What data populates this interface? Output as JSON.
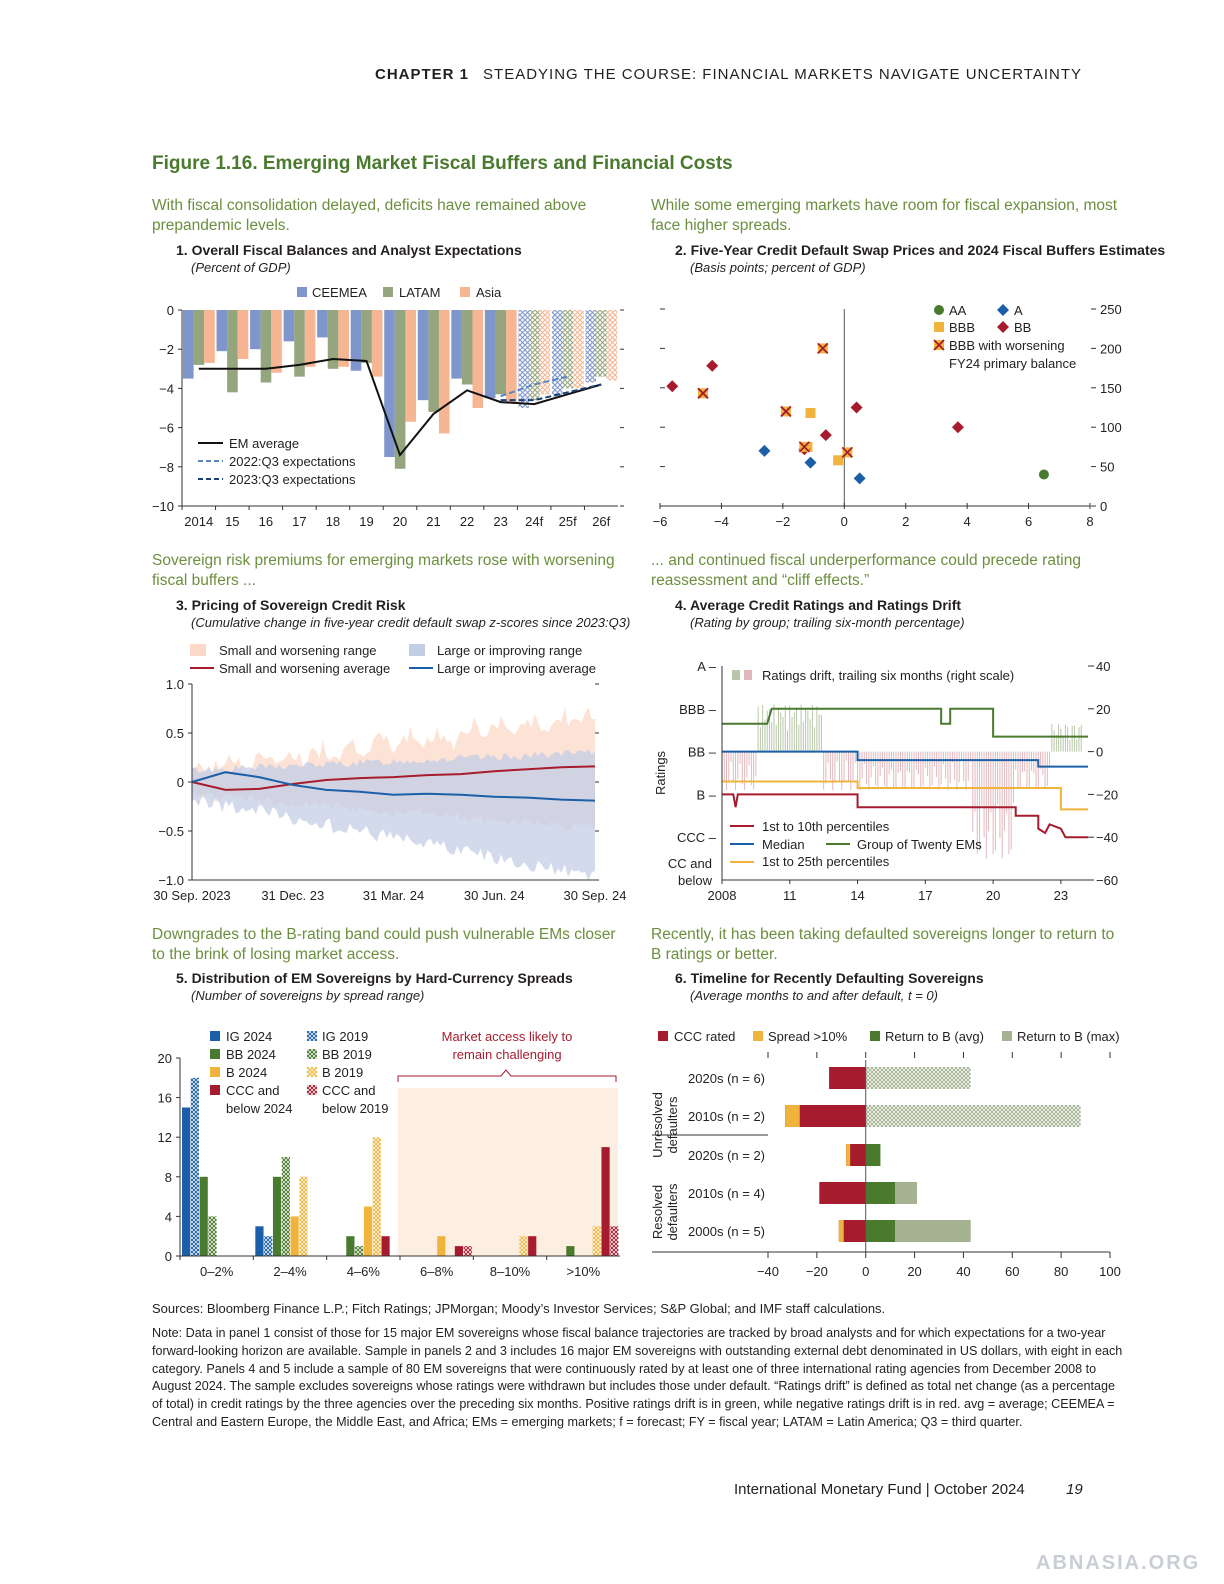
{
  "header": {
    "chapter": "CHAPTER 1",
    "title": "STEADYING THE COURSE: FINANCIAL MARKETS NAVIGATE UNCERTAINTY"
  },
  "figure_title": "Figure 1.16. Emerging Market Fiscal Buffers and Financial Costs",
  "panels": {
    "p1": {
      "lead": "With fiscal consolidation delayed, deficits have remained above prepandemic levels.",
      "title": "1. Overall Fiscal Balances and Analyst Expectations",
      "subtitle": "(Percent of GDP)"
    },
    "p2": {
      "lead": "While some emerging markets have room for fiscal expansion, most face higher spreads.",
      "title": "2. Five-Year Credit Default Swap Prices and 2024 Fiscal Buffers Estimates",
      "subtitle": "(Basis points; percent of GDP)"
    },
    "p3": {
      "lead": "Sovereign risk premiums for emerging markets rose with worsening fiscal buffers ...",
      "title": "3. Pricing of Sovereign Credit Risk",
      "subtitle": "(Cumulative change in five-year credit default swap z-scores since 2023:Q3)"
    },
    "p4": {
      "lead": "... and continued fiscal underperformance could precede rating reassessment and “cliff effects.”",
      "title": "4. Average Credit Ratings and Ratings Drift",
      "subtitle": "(Rating by group; trailing six-month percentage)"
    },
    "p5": {
      "lead": "Downgrades to the B-rating band could push vulnerable EMs closer to the brink of losing market access.",
      "title": "5. Distribution of EM Sovereigns by Hard-Currency Spreads",
      "subtitle": "(Number of sovereigns by spread range)"
    },
    "p6": {
      "lead": "Recently, it has been taking defaulted sovereigns longer to return to B ratings or better.",
      "title": "6. Timeline for Recently Defaulting Sovereigns",
      "subtitle": "(Average months to and after default, t = 0)"
    }
  },
  "chart_data": [
    {
      "id": "p1",
      "type": "bar",
      "categories": [
        "2014",
        "15",
        "16",
        "17",
        "18",
        "19",
        "20",
        "21",
        "22",
        "23",
        "24f",
        "25f",
        "26f"
      ],
      "series": [
        {
          "name": "CEEMEA",
          "color": "#7f96cc",
          "values": [
            -3.5,
            -2.1,
            -2.0,
            -1.6,
            -1.4,
            -3.1,
            -7.5,
            -4.6,
            -3.5,
            -4.5,
            -5.0,
            -4.4,
            -3.7
          ]
        },
        {
          "name": "LATAM",
          "color": "#95a57e",
          "values": [
            -2.8,
            -4.2,
            -3.7,
            -3.4,
            -3.0,
            -2.7,
            -8.1,
            -5.2,
            -3.8,
            -4.3,
            -4.6,
            -4.0,
            -3.4
          ]
        },
        {
          "name": "Asia",
          "color": "#f6b694",
          "values": [
            -2.7,
            -2.5,
            -3.2,
            -2.9,
            -2.9,
            -3.4,
            -5.7,
            -6.3,
            -5.0,
            -4.7,
            -4.3,
            -4.0,
            -3.6
          ]
        }
      ],
      "forecast_from_index": 10,
      "lines": [
        {
          "name": "EM average",
          "style": "solid",
          "x": [
            "2014",
            "15",
            "16",
            "17",
            "18",
            "19",
            "20",
            "21",
            "22",
            "23",
            "24f",
            "25f",
            "26f"
          ],
          "values": [
            -3.0,
            -3.0,
            -3.0,
            -2.8,
            -2.5,
            -2.6,
            -7.4,
            -5.3,
            -4.1,
            -4.7,
            -4.8,
            -4.3,
            -3.8
          ]
        },
        {
          "name": "2022:Q3 expectations",
          "style": "dash-light",
          "x": [
            "23",
            "24f",
            "25f"
          ],
          "values": [
            -4.4,
            -3.8,
            -3.4
          ]
        },
        {
          "name": "2023:Q3 expectations",
          "style": "dash-dark",
          "x": [
            "23",
            "24f",
            "25f",
            "26f"
          ],
          "values": [
            -4.6,
            -4.6,
            -4.2,
            -3.8
          ]
        }
      ],
      "ylim": [
        -10,
        0
      ],
      "yticks": [
        "0",
        "−2",
        "−4",
        "−6",
        "−8",
        "−10"
      ]
    },
    {
      "id": "p2",
      "type": "scatter",
      "xlim": [
        -6,
        8
      ],
      "ylim": [
        0,
        250
      ],
      "xticks": [
        "−6",
        "−4",
        "−2",
        "0",
        "2",
        "4",
        "6",
        "8"
      ],
      "yticks": [
        "250",
        "200",
        "150",
        "100",
        "50",
        "0"
      ],
      "legend": {
        "AA": "AA",
        "A": "A",
        "BBB": "BBB",
        "BB": "BB",
        "worse1": "BBB with worsening",
        "worse2": "FY24 primary balance"
      },
      "points": [
        {
          "group": "AA",
          "x": 6.5,
          "y": 40
        },
        {
          "group": "A",
          "x": -2.6,
          "y": 70
        },
        {
          "group": "A",
          "x": -1.1,
          "y": 55
        },
        {
          "group": "A",
          "x": 0.5,
          "y": 35
        },
        {
          "group": "BBB",
          "x": -1.1,
          "y": 118
        },
        {
          "group": "BBB",
          "x": -1.2,
          "y": 75
        },
        {
          "group": "BBB",
          "x": -0.2,
          "y": 58
        },
        {
          "group": "BB",
          "x": -5.6,
          "y": 152
        },
        {
          "group": "BB",
          "x": -4.3,
          "y": 178
        },
        {
          "group": "BB",
          "x": -0.6,
          "y": 90
        },
        {
          "group": "BB",
          "x": 0.4,
          "y": 125
        },
        {
          "group": "BB",
          "x": 3.7,
          "y": 100
        },
        {
          "group": "BB",
          "x": -1.3,
          "y": 72
        },
        {
          "group": "BBBW",
          "x": -0.7,
          "y": 200
        },
        {
          "group": "BBBW",
          "x": -4.6,
          "y": 143
        },
        {
          "group": "BBBW",
          "x": -1.9,
          "y": 120
        },
        {
          "group": "BBBW",
          "x": -1.3,
          "y": 75
        },
        {
          "group": "BBBW",
          "x": 0.1,
          "y": 68
        }
      ]
    },
    {
      "id": "p3",
      "type": "area",
      "xticks": [
        "30 Sep. 2023",
        "31 Dec. 23",
        "31 Mar. 24",
        "30 Jun. 24",
        "30 Sep. 24"
      ],
      "ylim": [
        -1.0,
        1.0
      ],
      "yticks": [
        "1.0",
        "0.5",
        "0",
        "−0.5",
        "−1.0"
      ],
      "series": [
        {
          "name": "Small and worsening range",
          "kind": "band",
          "color": "#fbd9c8"
        },
        {
          "name": "Large or improving range",
          "kind": "band",
          "color": "#c4cde6"
        },
        {
          "name": "Small and worsening average",
          "kind": "line",
          "color": "#a61c2e",
          "values": [
            0.0,
            -0.08,
            -0.07,
            -0.02,
            0.02,
            0.04,
            0.05,
            0.07,
            0.08,
            0.11,
            0.13,
            0.15,
            0.16
          ]
        },
        {
          "name": "Large or improving average",
          "kind": "line",
          "color": "#1b5fa8",
          "values": [
            0.0,
            0.1,
            0.05,
            -0.03,
            -0.08,
            -0.1,
            -0.13,
            -0.12,
            -0.13,
            -0.15,
            -0.16,
            -0.18,
            -0.19
          ]
        }
      ]
    },
    {
      "id": "p4",
      "type": "line",
      "xticks": [
        "2008",
        "11",
        "14",
        "17",
        "20",
        "23"
      ],
      "yticks_left": [
        "A",
        "BBB",
        "BB",
        "B",
        "CCC",
        "CC and below"
      ],
      "yticks_right": [
        "40",
        "20",
        "0",
        "−20",
        "−40",
        "−60"
      ],
      "ylabel": "Ratings",
      "legend_top": "Ratings drift, trailing six months (right scale)",
      "series": [
        {
          "name": "1st to 10th percentiles",
          "color": "#a61c2e"
        },
        {
          "name": "Median",
          "color": "#1b5fa8"
        },
        {
          "name": "Group of Twenty EMs",
          "color": "#4a7a2e"
        },
        {
          "name": "1st to 25th percentiles",
          "color": "#f0b43c"
        }
      ]
    },
    {
      "id": "p5",
      "type": "bar",
      "categories": [
        "0–2%",
        "2–4%",
        "4–6%",
        "6–8%",
        "8–10%",
        ">10%"
      ],
      "series": [
        {
          "name": "IG 2024",
          "color": "#1b5fa8",
          "values": [
            15,
            3,
            0,
            0,
            0,
            0
          ]
        },
        {
          "name": "IG 2019",
          "color": "#1b5fa8",
          "hatched": true,
          "values": [
            18,
            2,
            0,
            0,
            0,
            0
          ]
        },
        {
          "name": "BB 2024",
          "color": "#4a7a2e",
          "values": [
            8,
            8,
            2,
            0,
            0,
            1
          ]
        },
        {
          "name": "BB 2019",
          "color": "#4a7a2e",
          "hatched": true,
          "values": [
            4,
            10,
            1,
            0,
            0,
            0
          ]
        },
        {
          "name": "B 2024",
          "color": "#f0b43c",
          "values": [
            0,
            4,
            5,
            2,
            0,
            0
          ]
        },
        {
          "name": "B 2019",
          "color": "#f0b43c",
          "hatched": true,
          "values": [
            0,
            8,
            12,
            0,
            2,
            3
          ]
        },
        {
          "name": "CCC and below 2024",
          "color": "#a61c2e",
          "values": [
            0,
            0,
            2,
            1,
            2,
            11
          ]
        },
        {
          "name": "CCC and below 2019",
          "color": "#a61c2e",
          "hatched": true,
          "values": [
            0,
            0,
            0,
            1,
            0,
            3
          ]
        }
      ],
      "legend": {
        "ig24": "IG 2024",
        "bb24": "BB 2024",
        "b24": "B 2024",
        "ccc24a": "CCC and",
        "ccc24b": "below 2024",
        "ig19": "IG 2019",
        "bb19": "BB 2019",
        "b19": "B 2019",
        "ccc19a": "CCC and",
        "ccc19b": "below 2019"
      },
      "annotation": [
        "Market access likely to",
        "remain challenging"
      ],
      "ylim": [
        0,
        20
      ],
      "yticks": [
        "20",
        "16",
        "12",
        "8",
        "4",
        "0"
      ]
    },
    {
      "id": "p6",
      "type": "bar",
      "orientation": "horizontal",
      "groups": [
        "Unresolved defaulters",
        "Resolved defaulters"
      ],
      "rows": [
        {
          "label": "2020s (n = 6)",
          "ccc": -15,
          "spread": 0,
          "avg": 0,
          "max": 43
        },
        {
          "label": "2010s (n = 2)",
          "ccc": -27,
          "spread": -6,
          "avg": 0,
          "max": 88
        },
        {
          "label": "2020s (n = 2)",
          "ccc": -7,
          "spread": -1,
          "avg": 6,
          "max": 6
        },
        {
          "label": "2010s (n = 4)",
          "ccc": -19,
          "spread": 0,
          "avg": 12,
          "max": 21
        },
        {
          "label": "2000s (n = 5)",
          "ccc": -9,
          "spread": -2,
          "avg": 12,
          "max": 43
        }
      ],
      "legend": [
        "CCC rated",
        "Spread >10%",
        "Return to B (avg)",
        "Return to B (max)"
      ],
      "xlim": [
        -40,
        100
      ],
      "xticks": [
        "−40",
        "−20",
        "0",
        "20",
        "40",
        "60",
        "80",
        "100"
      ]
    }
  ],
  "legend1": {
    "ceemea": "CEEMEA",
    "latam": "LATAM",
    "asia": "Asia",
    "em": "EM average",
    "e22": "2022:Q3 expectations",
    "e23": "2023:Q3 expectations"
  },
  "legend3": {
    "swr": "Small and worsening range",
    "swa": "Small and worsening average",
    "lir": "Large or improving range",
    "lia": "Large or improving average"
  },
  "legend4": {
    "p10": "1st to 10th percentiles",
    "med": "Median",
    "g20": "Group of Twenty EMs",
    "p25": "1st to 25th percentiles"
  },
  "p4_ylabels": [
    "A –",
    "BBB –",
    "BB –",
    "B –",
    "CCC –",
    "CC and",
    "below"
  ],
  "p6_groups": [
    "Unresolved",
    "defaulters",
    "Resolved",
    "defaulters"
  ],
  "sources": "Sources: Bloomberg Finance L.P.; Fitch Ratings; JPMorgan; Moody’s Investor Services; S&P Global; and IMF staff calculations.",
  "note": "Note: Data in panel 1 consist of those for 15 major EM sovereigns whose fiscal balance trajectories are tracked by broad analysts and for which expectations for a two-year forward-looking horizon are available. Sample in panels 2 and 3 includes 16 major EM sovereigns with outstanding external debt denominated in US dollars, with eight in each category. Panels 4 and 5 include a sample of 80 EM sovereigns that were continuously rated by at least one of three international rating agencies from December 2008 to August 2024. The sample excludes sovereigns whose ratings were withdrawn but includes those under default. “Ratings drift” is defined as total net change (as a percentage of total) in credit ratings by the three agencies over the preceding six months. Positive ratings drift is in green, while negative ratings drift is in red. avg = average; CEEMEA = Central and Eastern Europe, the Middle East, and Africa; EMs = emerging markets; f = forecast; FY = fiscal year; LATAM = Latin America; Q3 = third quarter.",
  "footer": "International Monetary Fund | October 2024",
  "page_number": "19",
  "watermark": "ABNASIA.ORG"
}
